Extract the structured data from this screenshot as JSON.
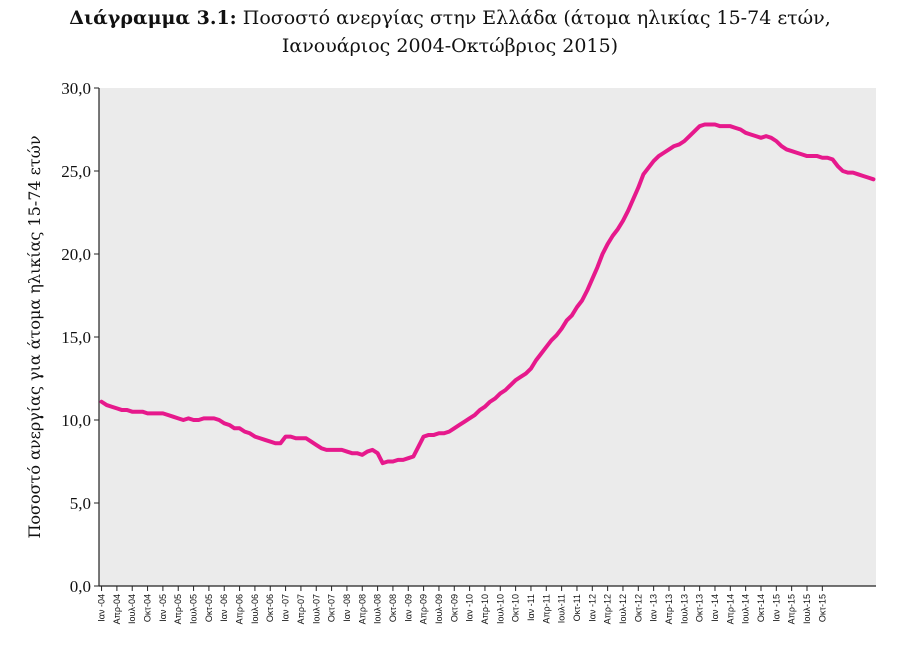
{
  "title": {
    "prefix": "Διάγραμμα 3.1:",
    "line1": "Ποσοστό ανεργίας στην Ελλάδα (άτομα ηλικίας 15-74 ετών,",
    "line2": "Ιανουάριος 2004-Οκτώβριος 2015)"
  },
  "chart_data": {
    "type": "line",
    "ylabel": "Ποσοστό ανεργίας για άτομα ηλικίας 15-74 ετών",
    "xlabel": "",
    "ylim": [
      0,
      30
    ],
    "y_ticks": [
      "0,0",
      "5,0",
      "10,0",
      "15,0",
      "20,0",
      "25,0",
      "30,0"
    ],
    "x_tick_labels": [
      "Ιαν -04",
      "Απρ-04",
      "Ιουλ-04",
      "Οκτ-04",
      "Ιαν -05",
      "Απρ-05",
      "Ιουλ-05",
      "Οκτ-05",
      "Ιαν -06",
      "Απρ-06",
      "Ιουλ-06",
      "Οκτ-06",
      "Ιαν -07",
      "Απρ-07",
      "Ιουλ-07",
      "Οκτ-07",
      "Ιαν -08",
      "Απρ-08",
      "Ιουλ-08",
      "Οκτ-08",
      "Ιαν -09",
      "Απρ-09",
      "Ιουλ-09",
      "Οκτ-09",
      "Ιαν -10",
      "Απρ-10",
      "Ιουλ-10",
      "Οκτ-10",
      "Ιαν -11",
      "Απρ-11",
      "Ιουλ-11",
      "Οκτ-11",
      "Ιαν -12",
      "Απρ-12",
      "Ιουλ-12",
      "Οκτ-12",
      "Ιαν -13",
      "Απρ-13",
      "Ιουλ-13",
      "Οκτ-13",
      "Ιαν -14",
      "Απρ-14",
      "Ιουλ-14",
      "Οκτ-14",
      "Ιαν -15",
      "Απρ-15",
      "Ιουλ-15",
      "Οκτ-15"
    ],
    "grid": false,
    "line_color": "#e6198c",
    "plot_background": "#ebebeb",
    "series": [
      {
        "values": [
          11.1,
          10.9,
          10.8,
          10.7,
          10.6,
          10.6,
          10.5,
          10.5,
          10.5,
          10.4,
          10.4,
          10.4,
          10.4,
          10.3,
          10.2,
          10.1,
          10.0,
          10.1,
          10.0,
          10.0,
          10.1,
          10.1,
          10.1,
          10.0,
          9.8,
          9.7,
          9.5,
          9.5,
          9.3,
          9.2,
          9.0,
          8.9,
          8.8,
          8.7,
          8.6,
          8.6,
          9.0,
          9.0,
          8.9,
          8.9,
          8.9,
          8.7,
          8.5,
          8.3,
          8.2,
          8.2,
          8.2,
          8.2,
          8.1,
          8.0,
          8.0,
          7.9,
          8.1,
          8.2,
          8.0,
          7.4,
          7.5,
          7.5,
          7.6,
          7.6,
          7.7,
          7.8,
          8.4,
          9.0,
          9.1,
          9.1,
          9.2,
          9.2,
          9.3,
          9.5,
          9.7,
          9.9,
          10.1,
          10.3,
          10.6,
          10.8,
          11.1,
          11.3,
          11.6,
          11.8,
          12.1,
          12.4,
          12.6,
          12.8,
          13.1,
          13.6,
          14.0,
          14.4,
          14.8,
          15.1,
          15.5,
          16.0,
          16.3,
          16.8,
          17.2,
          17.8,
          18.5,
          19.2,
          20.0,
          20.6,
          21.1,
          21.5,
          22.0,
          22.6,
          23.3,
          24.0,
          24.8,
          25.2,
          25.6,
          25.9,
          26.1,
          26.3,
          26.5,
          26.6,
          26.8,
          27.1,
          27.4,
          27.7,
          27.8,
          27.8,
          27.8,
          27.7,
          27.7,
          27.7,
          27.6,
          27.5,
          27.3,
          27.2,
          27.1,
          27.0,
          27.1,
          27.0,
          26.8,
          26.5,
          26.3,
          26.2,
          26.1,
          26.0,
          25.9,
          25.9,
          25.9,
          25.8,
          25.8,
          25.7,
          25.3,
          25.0,
          24.9,
          24.9,
          24.8,
          24.7,
          24.6,
          24.5
        ]
      }
    ]
  }
}
